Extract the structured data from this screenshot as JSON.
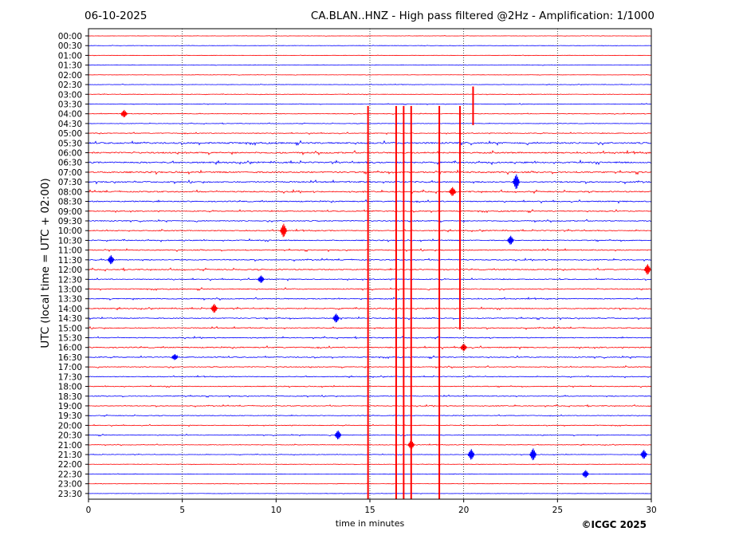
{
  "header": {
    "date": "06-10-2025",
    "title": "CA.BLAN..HNZ - High pass filtered @2Hz - Amplification: 1/1000"
  },
  "footer": {
    "copyright": "©ICGC 2025"
  },
  "colors": {
    "red": "#ff0000",
    "blue": "#0000ff",
    "frame": "#000000",
    "grid": "#000000"
  },
  "chart_data": {
    "type": "line",
    "subtype": "helicorder",
    "title": "CA.BLAN..HNZ - High pass filtered @2Hz - Amplification: 1/1000",
    "xlabel": "time in minutes",
    "ylabel": "UTC (local time = UTC + 02:00)",
    "xlim": [
      0,
      30
    ],
    "xticks": [
      0,
      5,
      10,
      15,
      20,
      25,
      30
    ],
    "grid": "vertical dotted at 5-minute ticks",
    "row_labels": [
      "00:00",
      "00:30",
      "01:00",
      "01:30",
      "02:00",
      "02:30",
      "03:00",
      "03:30",
      "04:00",
      "04:30",
      "05:00",
      "05:30",
      "06:00",
      "06:30",
      "07:00",
      "07:30",
      "08:00",
      "08:30",
      "09:00",
      "09:30",
      "10:00",
      "10:30",
      "11:00",
      "11:30",
      "12:00",
      "12:30",
      "13:00",
      "13:30",
      "14:00",
      "14:30",
      "15:00",
      "15:30",
      "16:00",
      "16:30",
      "17:00",
      "17:30",
      "18:00",
      "18:30",
      "19:00",
      "19:30",
      "20:00",
      "20:30",
      "21:00",
      "21:30",
      "22:00",
      "22:30",
      "23:00",
      "23:30"
    ],
    "row_colors": [
      "red",
      "blue"
    ],
    "noise_level": [
      0.3,
      0.3,
      0.3,
      0.3,
      0.3,
      0.4,
      0.4,
      0.5,
      0.5,
      0.5,
      0.8,
      1.6,
      1.5,
      1.5,
      1.5,
      1.3,
      1.3,
      1.2,
      1.1,
      1.0,
      1.0,
      1.0,
      1.0,
      1.0,
      1.1,
      1.0,
      1.0,
      1.0,
      1.0,
      1.0,
      1.0,
      0.9,
      1.2,
      1.0,
      0.9,
      0.8,
      0.8,
      0.8,
      0.8,
      0.7,
      0.7,
      0.7,
      0.6,
      0.5,
      0.4,
      0.3,
      0.3,
      0.3
    ],
    "large_events": [
      {
        "row": "04:00",
        "minute": 14.9,
        "extent_rows": 47
      },
      {
        "row": "04:00",
        "minute": 16.4,
        "extent_rows": 47
      },
      {
        "row": "04:00",
        "minute": 16.8,
        "extent_rows": 47
      },
      {
        "row": "04:00",
        "minute": 17.2,
        "extent_rows": 40
      },
      {
        "row": "04:00",
        "minute": 18.7,
        "extent_rows": 40
      },
      {
        "row": "04:00",
        "minute": 19.8,
        "extent_rows": 22
      },
      {
        "row": "03:00",
        "minute": 20.5,
        "extent_rows": 3
      }
    ],
    "local_events": [
      {
        "row": "04:00",
        "minute": 1.9,
        "amp": 5
      },
      {
        "row": "07:30",
        "minute": 22.8,
        "amp": 10
      },
      {
        "row": "08:00",
        "minute": 19.4,
        "amp": 6
      },
      {
        "row": "10:00",
        "minute": 10.4,
        "amp": 9
      },
      {
        "row": "10:30",
        "minute": 22.5,
        "amp": 6
      },
      {
        "row": "11:30",
        "minute": 1.2,
        "amp": 6
      },
      {
        "row": "12:00",
        "minute": 29.8,
        "amp": 7
      },
      {
        "row": "12:30",
        "minute": 9.2,
        "amp": 5
      },
      {
        "row": "14:00",
        "minute": 6.7,
        "amp": 6
      },
      {
        "row": "14:30",
        "minute": 13.2,
        "amp": 6
      },
      {
        "row": "16:00",
        "minute": 20.0,
        "amp": 5
      },
      {
        "row": "16:30",
        "minute": 4.6,
        "amp": 4
      },
      {
        "row": "20:30",
        "minute": 13.3,
        "amp": 6
      },
      {
        "row": "21:00",
        "minute": 17.2,
        "amp": 6
      },
      {
        "row": "21:30",
        "minute": 20.4,
        "amp": 7
      },
      {
        "row": "21:30",
        "minute": 23.7,
        "amp": 8
      },
      {
        "row": "21:30",
        "minute": 29.6,
        "amp": 6
      },
      {
        "row": "22:30",
        "minute": 26.5,
        "amp": 5
      }
    ]
  }
}
